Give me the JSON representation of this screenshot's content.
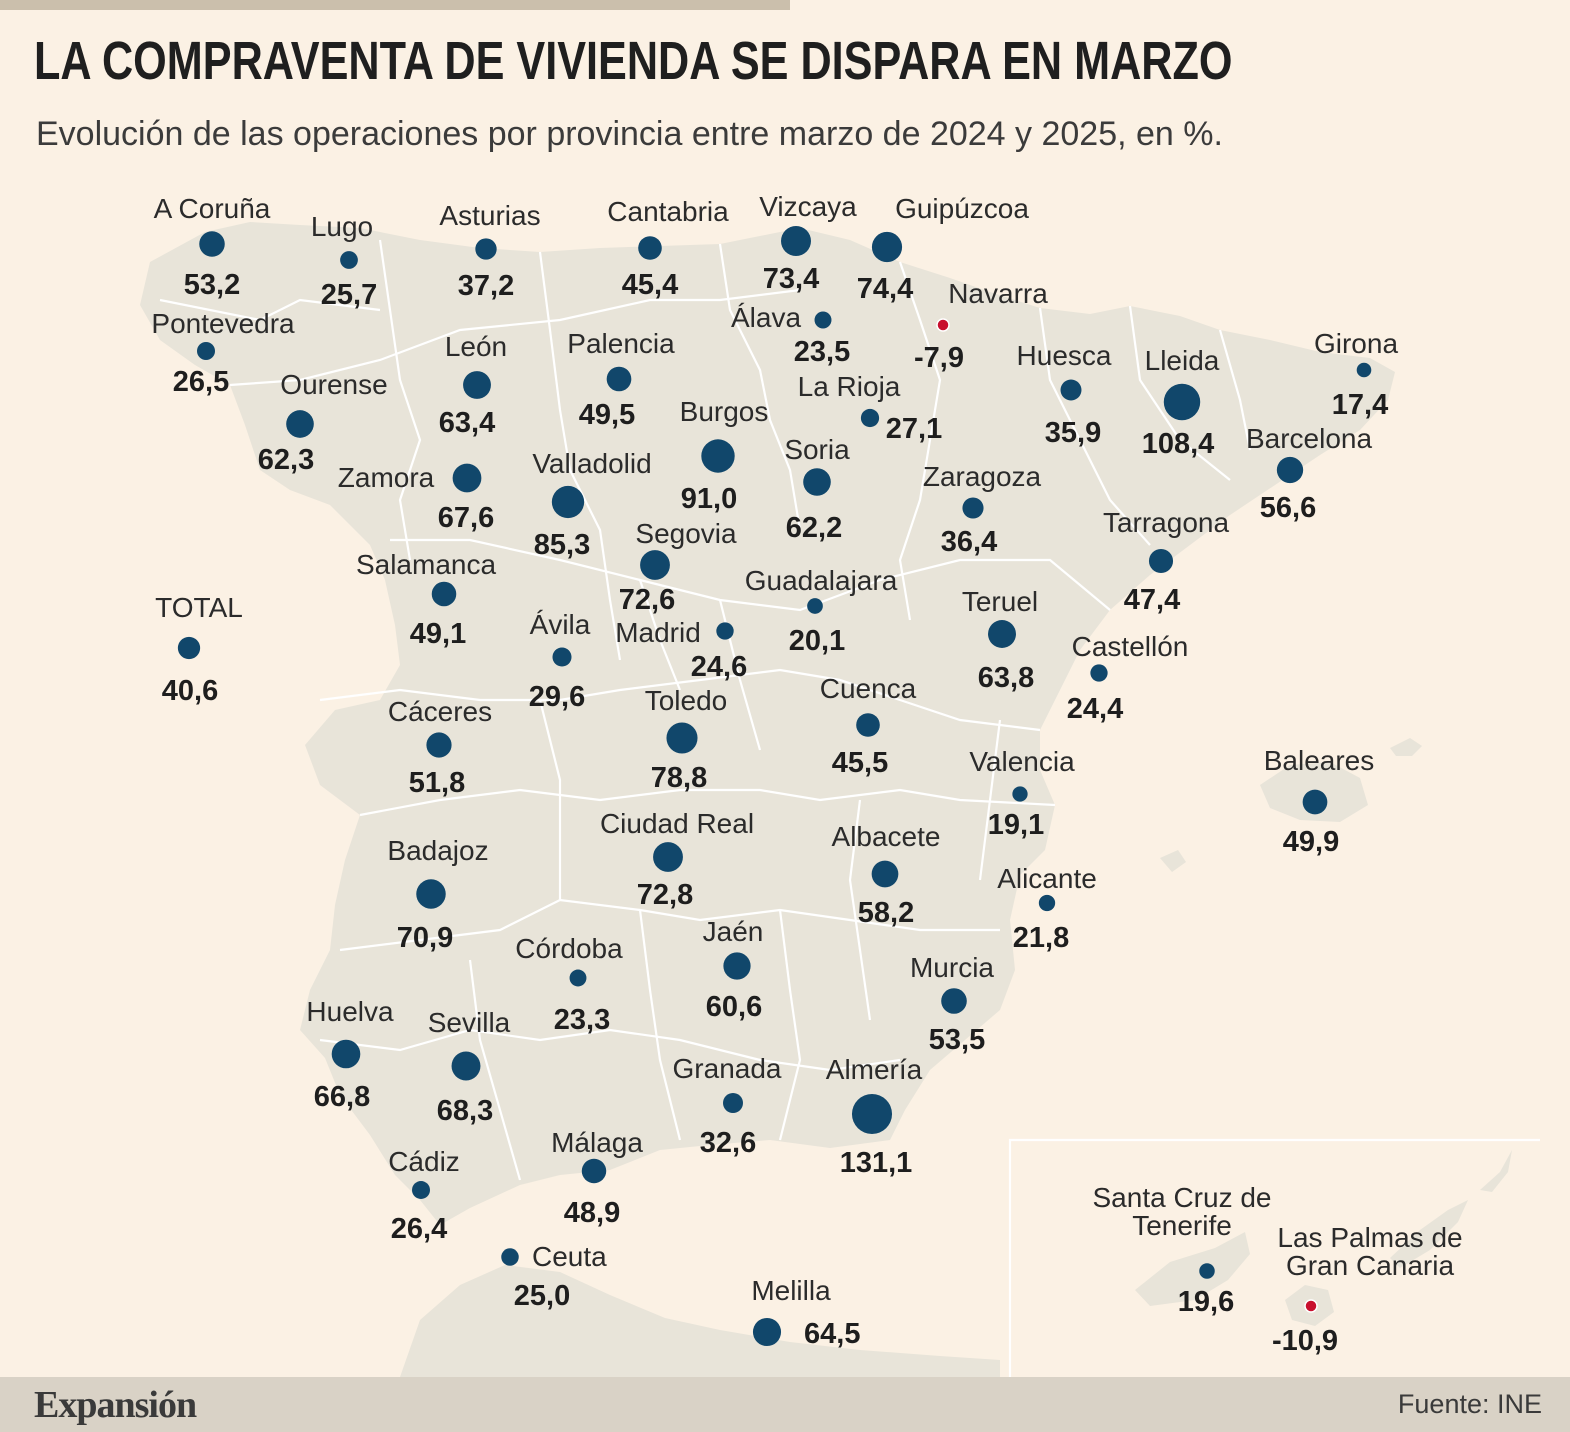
{
  "header": {
    "title": "LA COMPRAVENTA DE VIVIENDA SE DISPARA EN MARZO",
    "subtitle": "Evolución de las operaciones por provincia entre marzo de 2024 y 2025, en %."
  },
  "colors": {
    "positive_marker": "#11476b",
    "negative_marker": "#c8102e",
    "land": "#e8e4d9",
    "border": "#ffffff",
    "background": "#fbf1e4"
  },
  "provinces": [
    {
      "name": "A Coruña",
      "value": "53,2"
    },
    {
      "name": "Lugo",
      "value": "25,7"
    },
    {
      "name": "Asturias",
      "value": "37,2"
    },
    {
      "name": "Cantabria",
      "value": "45,4"
    },
    {
      "name": "Vizcaya",
      "value": "73,4"
    },
    {
      "name": "Guipúzcoa",
      "value": "74,4"
    },
    {
      "name": "Pontevedra",
      "value": "26,5"
    },
    {
      "name": "Álava",
      "value": "23,5"
    },
    {
      "name": "Navarra",
      "value": "-7,9"
    },
    {
      "name": "León",
      "value": "63,4"
    },
    {
      "name": "Palencia",
      "value": "49,5"
    },
    {
      "name": "Ourense",
      "value": "62,3"
    },
    {
      "name": "Burgos",
      "value": "91,0"
    },
    {
      "name": "La Rioja",
      "value": "27,1"
    },
    {
      "name": "Huesca",
      "value": "35,9"
    },
    {
      "name": "Lleida",
      "value": "108,4"
    },
    {
      "name": "Girona",
      "value": "17,4"
    },
    {
      "name": "Barcelona",
      "value": "56,6"
    },
    {
      "name": "Zamora",
      "value": "67,6"
    },
    {
      "name": "Valladolid",
      "value": "85,3"
    },
    {
      "name": "Soria",
      "value": "62,2"
    },
    {
      "name": "Zaragoza",
      "value": "36,4"
    },
    {
      "name": "Segovia",
      "value": "72,6"
    },
    {
      "name": "Tarragona",
      "value": "47,4"
    },
    {
      "name": "Salamanca",
      "value": "49,1"
    },
    {
      "name": "Guadalajara",
      "value": "20,1"
    },
    {
      "name": "TOTAL",
      "value": "40,6"
    },
    {
      "name": "Ávila",
      "value": "29,6"
    },
    {
      "name": "Madrid",
      "value": "24,6"
    },
    {
      "name": "Teruel",
      "value": "63,8"
    },
    {
      "name": "Castellón",
      "value": "24,4"
    },
    {
      "name": "Cáceres",
      "value": "51,8"
    },
    {
      "name": "Toledo",
      "value": "78,8"
    },
    {
      "name": "Cuenca",
      "value": "45,5"
    },
    {
      "name": "Valencia",
      "value": "19,1"
    },
    {
      "name": "Baleares",
      "value": "49,9"
    },
    {
      "name": "Ciudad Real",
      "value": "72,8"
    },
    {
      "name": "Albacete",
      "value": "58,2"
    },
    {
      "name": "Badajoz",
      "value": "70,9"
    },
    {
      "name": "Alicante",
      "value": "21,8"
    },
    {
      "name": "Córdoba",
      "value": "23,3"
    },
    {
      "name": "Jaén",
      "value": "60,6"
    },
    {
      "name": "Murcia",
      "value": "53,5"
    },
    {
      "name": "Huelva",
      "value": "66,8"
    },
    {
      "name": "Sevilla",
      "value": "68,3"
    },
    {
      "name": "Granada",
      "value": "32,6"
    },
    {
      "name": "Almería",
      "value": "131,1"
    },
    {
      "name": "Cádiz",
      "value": "26,4"
    },
    {
      "name": "Málaga",
      "value": "48,9"
    },
    {
      "name": "Ceuta",
      "value": "25,0"
    },
    {
      "name": "Melilla",
      "value": "64,5"
    },
    {
      "name": "Santa Cruz de Tenerife",
      "value": "19,6"
    },
    {
      "name": "Las Palmas de Gran Canaria",
      "value": "-10,9"
    }
  ],
  "footer": {
    "brand": "Expansión",
    "source": "Fuente: INE"
  }
}
